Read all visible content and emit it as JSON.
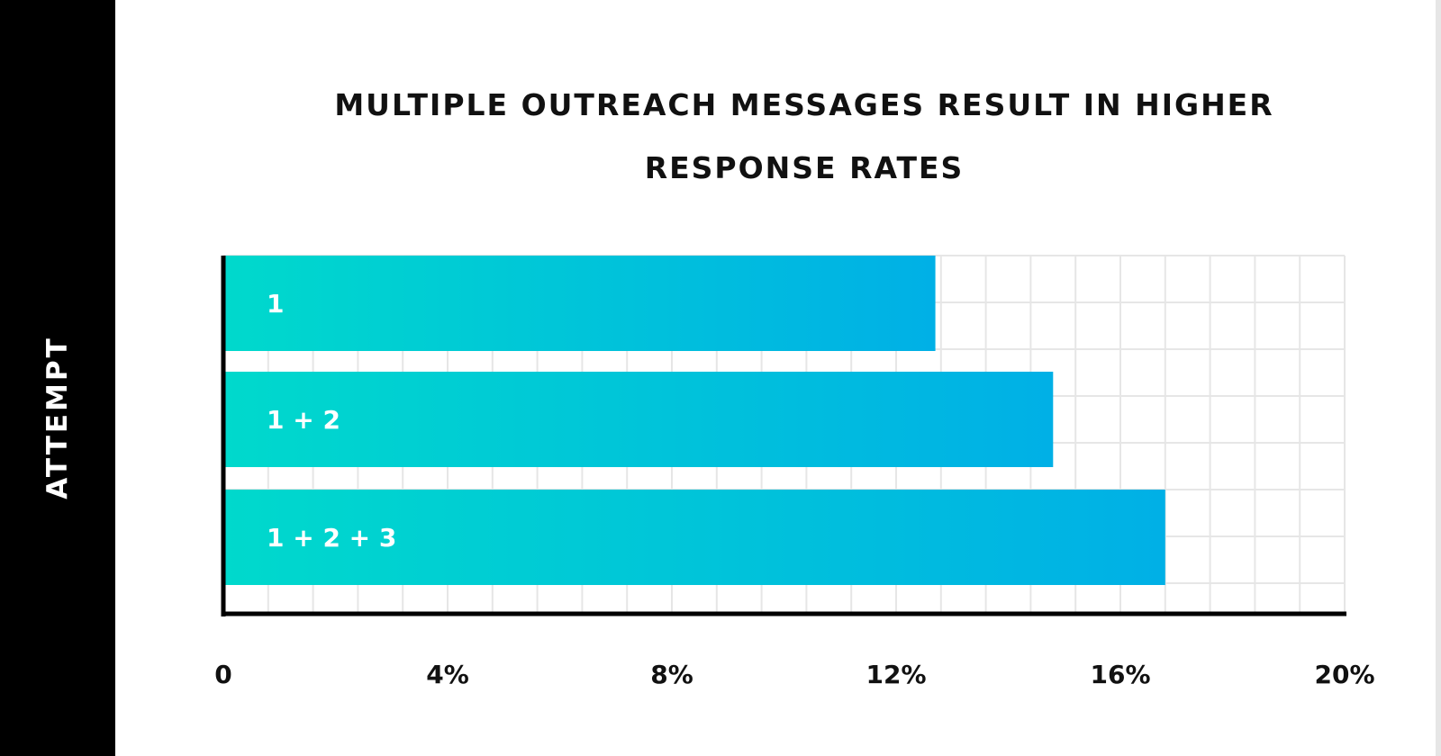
{
  "chart_data": {
    "type": "bar",
    "orientation": "horizontal",
    "title_lines": [
      "MULTIPLE OUTREACH MESSAGES RESULT IN HIGHER",
      "RESPONSE RATES"
    ],
    "xlabel": "",
    "ylabel": "ATTEMPT",
    "categories": [
      "1",
      "1 + 2",
      "1 + 2 + 3"
    ],
    "values": [
      12.7,
      14.8,
      16.8
    ],
    "xlim": [
      0,
      20
    ],
    "x_ticks": [
      {
        "value": 0,
        "label": "0"
      },
      {
        "value": 4,
        "label": "4%"
      },
      {
        "value": 8,
        "label": "8%"
      },
      {
        "value": 12,
        "label": "12%"
      },
      {
        "value": 16,
        "label": "16%"
      },
      {
        "value": 20,
        "label": "20%"
      }
    ],
    "grid": true,
    "legend": "none",
    "colors": {
      "bar_start": "#00d9cc",
      "bar_end": "#00b0e6",
      "sidebar": "#000000",
      "grid": "#e6e6e6",
      "axis": "#000000"
    }
  }
}
